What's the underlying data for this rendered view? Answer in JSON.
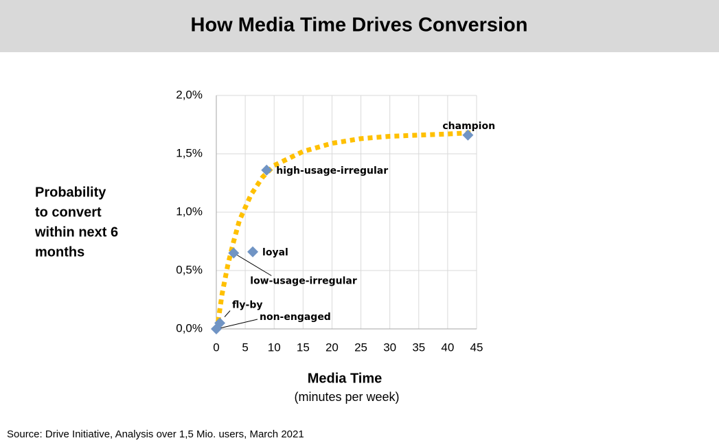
{
  "chart_data": {
    "type": "scatter",
    "title": "How Media Time Drives Conversion",
    "y_label": [
      "Probability",
      "to convert",
      "within next 6",
      "months"
    ],
    "x_label": "Media Time",
    "x_label_note": "(minutes per week)",
    "source": "Source: Drive Initiative, Analysis over 1,5 Mio. users, March 2021",
    "point_labels": [
      "non-engaged",
      "fly-by",
      "low-usage-irregular",
      "loyal",
      "high-usage-irregular",
      "champion"
    ],
    "x": [
      0,
      0.6,
      3.0,
      6.3,
      8.7,
      43.5
    ],
    "values": [
      0.0,
      0.05,
      0.65,
      0.66,
      1.36,
      1.66
    ],
    "color": "#7094c4",
    "trendline": {
      "color": "#ffc000",
      "x": [
        0.3,
        1,
        2,
        3,
        4,
        6,
        8,
        10,
        15,
        20,
        25,
        30,
        35,
        40,
        44
      ],
      "values": [
        0.06,
        0.3,
        0.55,
        0.75,
        0.93,
        1.15,
        1.3,
        1.4,
        1.52,
        1.59,
        1.63,
        1.65,
        1.66,
        1.67,
        1.68
      ]
    },
    "xlim": [
      0,
      45
    ],
    "xticks": [
      0,
      5,
      10,
      15,
      20,
      25,
      30,
      35,
      40,
      45
    ],
    "ylim": [
      0,
      2.0
    ],
    "yticks": [
      {
        "value": 0,
        "label": "0,0%"
      },
      {
        "value": 0.5,
        "label": "0,5%"
      },
      {
        "value": 1.0,
        "label": "1,0%"
      },
      {
        "value": 1.5,
        "label": "1,5%"
      },
      {
        "value": 2.0,
        "label": "2,0%"
      }
    ],
    "grid": true
  }
}
